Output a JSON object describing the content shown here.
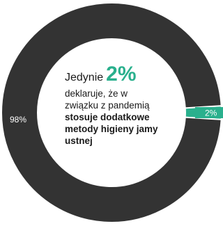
{
  "chart_data": {
    "type": "pie",
    "variant": "donut",
    "slices": [
      {
        "label": "98%",
        "value": 98,
        "color": "#333333"
      },
      {
        "label": "2%",
        "value": 2,
        "color": "#2ab08d"
      }
    ],
    "center_text": {
      "lead": "Jedynie",
      "highlight": "2%",
      "highlight_color": "#2ab08d",
      "line2": "deklaruje, że w",
      "line3": "związku z pandemią",
      "bold_line1": "stosuje dodatkowe",
      "bold_line2": "metody higieny jamy",
      "bold_line3": "ustnej"
    }
  }
}
